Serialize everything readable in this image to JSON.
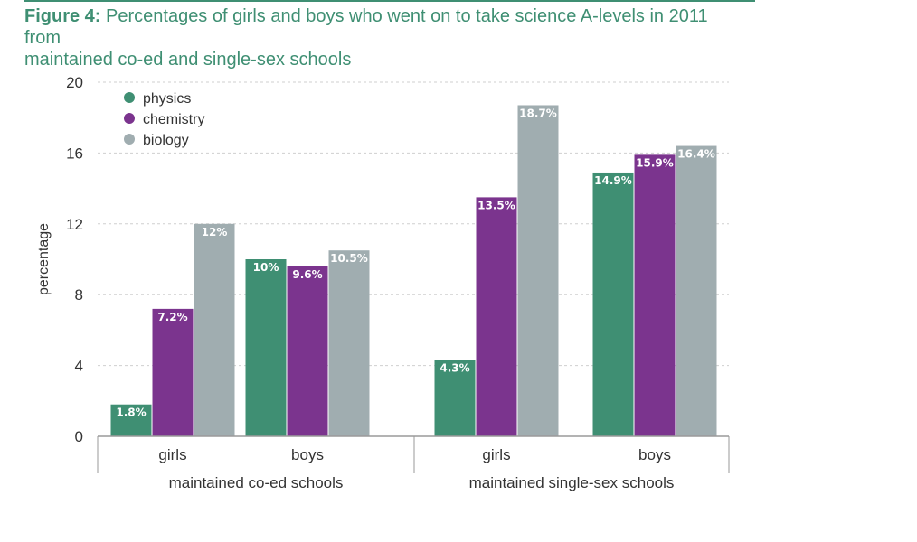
{
  "header": {
    "figure_label": "Figure 4:",
    "title_line1": "Percentages of girls and boys who went on to take science A-levels in 2011 from",
    "title_line2": "maintained co-ed and single-sex schools"
  },
  "colors": {
    "accent": "#3f8f73",
    "physics": "#3f8f73",
    "chemistry": "#7b348e",
    "biology": "#a0adb0",
    "grid": "#cfcfcf",
    "axis": "#9a9a9a"
  },
  "chart_data": {
    "type": "bar",
    "title": "Percentages of girls and boys who went on to take science A-levels in 2011 from maintained co-ed and single-sex schools",
    "ylabel": "percentage",
    "xlabel": "",
    "ylim": [
      0,
      20
    ],
    "yticks": [
      0,
      4,
      8,
      12,
      16,
      20
    ],
    "grid": true,
    "legend_position": "top-left",
    "groups": [
      {
        "label": "maintained co-ed schools",
        "categories": [
          "girls",
          "boys"
        ]
      },
      {
        "label": "maintained single-sex schools",
        "categories": [
          "girls",
          "boys"
        ]
      }
    ],
    "categories": [
      "girls",
      "boys",
      "girls",
      "boys"
    ],
    "series": [
      {
        "name": "physics",
        "values": [
          1.8,
          10,
          4.3,
          14.9
        ],
        "labels": [
          "1.8%",
          "10%",
          "4.3%",
          "14.9%"
        ]
      },
      {
        "name": "chemistry",
        "values": [
          7.2,
          9.6,
          13.5,
          15.9
        ],
        "labels": [
          "7.2%",
          "9.6%",
          "13.5%",
          "15.9%"
        ]
      },
      {
        "name": "biology",
        "values": [
          12,
          10.5,
          18.7,
          16.4
        ],
        "labels": [
          "12%",
          "10.5%",
          "18.7%",
          "16.4%"
        ]
      }
    ]
  }
}
